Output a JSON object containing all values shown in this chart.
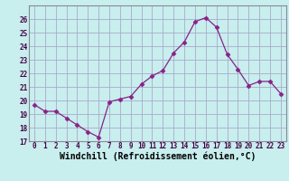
{
  "x": [
    0,
    1,
    2,
    3,
    4,
    5,
    6,
    7,
    8,
    9,
    10,
    11,
    12,
    13,
    14,
    15,
    16,
    17,
    18,
    19,
    20,
    21,
    22,
    23
  ],
  "y": [
    19.7,
    19.2,
    19.2,
    18.7,
    18.2,
    17.7,
    17.3,
    19.9,
    20.1,
    20.3,
    21.2,
    21.8,
    22.2,
    23.5,
    24.3,
    25.8,
    26.1,
    25.4,
    23.4,
    22.3,
    21.1,
    21.4,
    21.4,
    20.5
  ],
  "line_color": "#882288",
  "marker": "D",
  "marker_size": 2.5,
  "bg_color": "#C8EEEE",
  "grid_color": "#AAAACC",
  "xlabel": "Windchill (Refroidissement éolien,°C)",
  "ylim": [
    17,
    27
  ],
  "xlim": [
    -0.5,
    23.5
  ],
  "yticks": [
    17,
    18,
    19,
    20,
    21,
    22,
    23,
    24,
    25,
    26
  ],
  "xticks": [
    0,
    1,
    2,
    3,
    4,
    5,
    6,
    7,
    8,
    9,
    10,
    11,
    12,
    13,
    14,
    15,
    16,
    17,
    18,
    19,
    20,
    21,
    22,
    23
  ],
  "tick_fontsize": 5.5,
  "xlabel_fontsize": 7.0,
  "spine_color": "#888899"
}
